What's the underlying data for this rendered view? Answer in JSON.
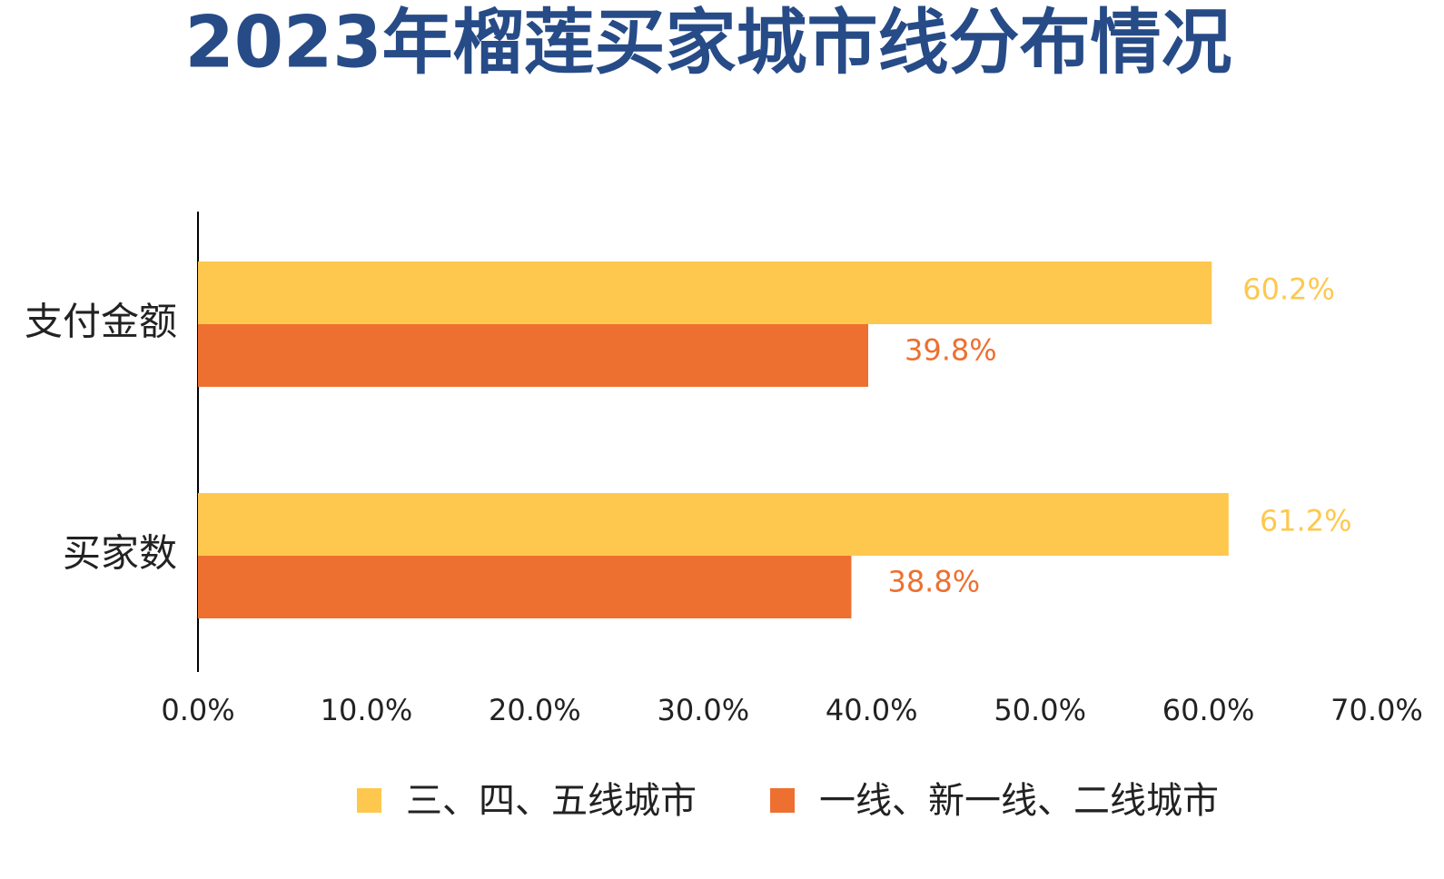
{
  "chart_data": {
    "type": "hbar",
    "title": "2023年榴莲买家城市线分布情况",
    "categories": [
      "支付金额",
      "买家数"
    ],
    "series": [
      {
        "name": "三、四、五线城市",
        "color": "#fec84e",
        "values": [
          60.2,
          61.2
        ],
        "value_labels": [
          "60.2%",
          "61.2%"
        ]
      },
      {
        "name": "一线、新一线、二线城市",
        "color": "#ed7031",
        "values": [
          39.8,
          38.8
        ],
        "value_labels": [
          "39.8%",
          "38.8%"
        ]
      }
    ],
    "xlim": [
      0,
      70
    ],
    "xticks": [
      {
        "value": 0,
        "label": "0.0%"
      },
      {
        "value": 10,
        "label": "10.0%"
      },
      {
        "value": 20,
        "label": "20.0%"
      },
      {
        "value": 30,
        "label": "30.0%"
      },
      {
        "value": 40,
        "label": "40.0%"
      },
      {
        "value": 50,
        "label": "50.0%"
      },
      {
        "value": 60,
        "label": "60.0%"
      },
      {
        "value": 70,
        "label": "70.0%"
      }
    ],
    "legend": "bottom"
  }
}
